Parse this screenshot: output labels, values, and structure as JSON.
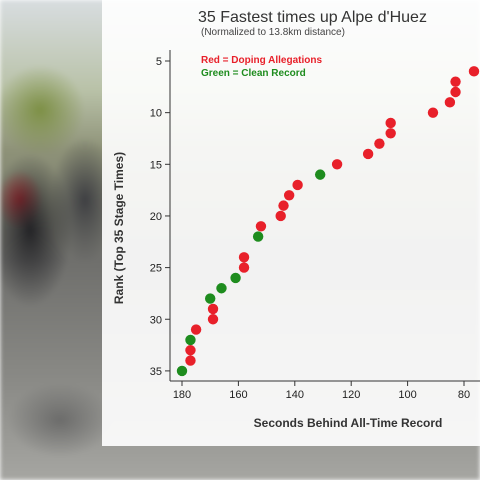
{
  "chart_data": {
    "type": "scatter",
    "title": "35 Fastest times up Alpe d'Huez",
    "subtitle": "(Normalized to 13.8km distance)",
    "xlabel": "Seconds Behind All-Time Record",
    "ylabel": "Rank (Top 35 Stage Times)",
    "xlim": [
      185,
      74
    ],
    "ylim": [
      2,
      36.5
    ],
    "x_ticks": [
      180,
      160,
      140,
      120,
      100,
      80
    ],
    "y_ticks": [
      5,
      10,
      15,
      20,
      25,
      30,
      35
    ],
    "legend": [
      {
        "label": "Red = Doping Allegations",
        "color": "#e8202a"
      },
      {
        "label": "Green = Clean Record",
        "color": "#1e8c1e"
      }
    ],
    "colors": {
      "doping": "#e8202a",
      "clean": "#1e8c1e"
    },
    "series": [
      {
        "name": "Doping Allegations",
        "color": "#e8202a",
        "points": [
          [
            74,
            6
          ],
          [
            83,
            7
          ],
          [
            83,
            8
          ],
          [
            85,
            9
          ],
          [
            91,
            10
          ],
          [
            106,
            11
          ],
          [
            106,
            12
          ],
          [
            110,
            13
          ],
          [
            114,
            14
          ],
          [
            125,
            15
          ],
          [
            139,
            17
          ],
          [
            142,
            18
          ],
          [
            144,
            19
          ],
          [
            145,
            20
          ],
          [
            152,
            21
          ],
          [
            158,
            24
          ],
          [
            158,
            25
          ],
          [
            169,
            29
          ],
          [
            169,
            30
          ],
          [
            175,
            31
          ],
          [
            177,
            33
          ],
          [
            177,
            34
          ]
        ]
      },
      {
        "name": "Clean Record",
        "color": "#1e8c1e",
        "points": [
          [
            131,
            16
          ],
          [
            153,
            22
          ],
          [
            161,
            26
          ],
          [
            166,
            27
          ],
          [
            170,
            28
          ],
          [
            177,
            32
          ],
          [
            180,
            35
          ]
        ]
      }
    ]
  }
}
